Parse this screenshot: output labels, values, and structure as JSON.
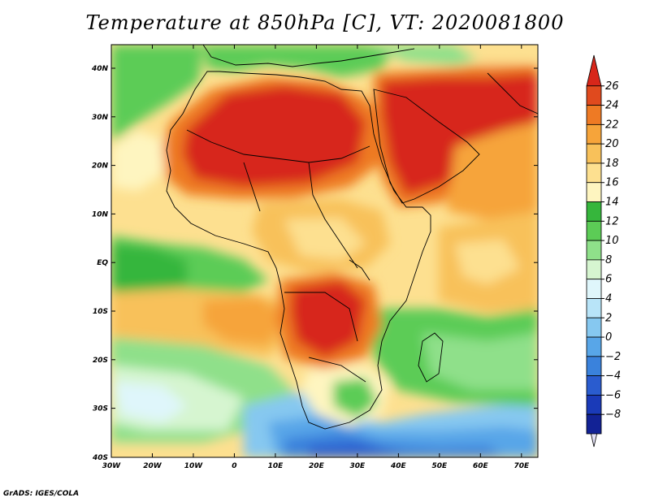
{
  "title": "Temperature at 850hPa [C], VT: 2020081800",
  "credit": "GrADS: IGES/COLA",
  "map": {
    "lon_ticks": [
      "30W",
      "20W",
      "10W",
      "0",
      "10E",
      "20E",
      "30E",
      "40E",
      "50E",
      "60E",
      "70E"
    ],
    "lat_ticks": [
      "40N",
      "30N",
      "20N",
      "10N",
      "EQ",
      "10S",
      "20S",
      "30S",
      "40S"
    ]
  },
  "colorbar": {
    "labels": [
      "26",
      "24",
      "22",
      "20",
      "18",
      "16",
      "14",
      "12",
      "10",
      "8",
      "6",
      "4",
      "2",
      "0",
      "-2",
      "-4",
      "-6",
      "-8"
    ],
    "colors": [
      "#d7261a",
      "#e04a1e",
      "#ee7a24",
      "#f6a43a",
      "#f8c15a",
      "#fde090",
      "#fef5c0",
      "#36b63c",
      "#5ccc56",
      "#8fe08a",
      "#d6f5d0",
      "#dff6fb",
      "#b8e4f8",
      "#86c8f0",
      "#58a6e8",
      "#3a82dc",
      "#2a5ccf",
      "#1a3ab8",
      "#122295"
    ]
  }
}
